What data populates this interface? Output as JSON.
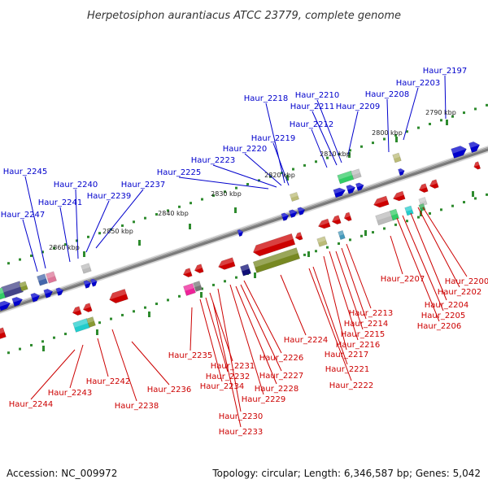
{
  "title": "Herpetosiphon aurantiacus ATCC 23779, complete genome",
  "footer": {
    "accession": "Accession: NC_009972",
    "summary": "Topology: circular; Length: 6,346,587 bp; Genes: 5,042"
  },
  "colors": {
    "forward": "#0000cc",
    "reverse": "#cc0000",
    "backbone": "#808080"
  },
  "kbp_labels": [
    "2790 kbp",
    "2800 kbp",
    "2810 kbp",
    "2820 kbp",
    "2830 kbp",
    "2840 kbp",
    "2850 kbp",
    "2860 kbp"
  ],
  "forward_genes": [
    "Haur_2197",
    "Haur_2203",
    "Haur_2208",
    "Haur_2209",
    "Haur_2210",
    "Haur_2211",
    "Haur_2212",
    "Haur_2218",
    "Haur_2219",
    "Haur_2220",
    "Haur_2223",
    "Haur_2225",
    "Haur_2237",
    "Haur_2239",
    "Haur_2240",
    "Haur_2241",
    "Haur_2245",
    "Haur_2247"
  ],
  "reverse_genes": [
    "Haur_2200",
    "Haur_2202",
    "Haur_2204",
    "Haur_2205",
    "Haur_2206",
    "Haur_2207",
    "Haur_2213",
    "Haur_2214",
    "Haur_2215",
    "Haur_2216",
    "Haur_2217",
    "Haur_2221",
    "Haur_2222",
    "Haur_2224",
    "Haur_2226",
    "Haur_2227",
    "Haur_2228",
    "Haur_2229",
    "Haur_2230",
    "Haur_2231",
    "Haur_2232",
    "Haur_2233",
    "Haur_2234",
    "Haur_2235",
    "Haur_2236",
    "Haur_2238",
    "Haur_2242",
    "Haur_2243",
    "Haur_2244"
  ]
}
